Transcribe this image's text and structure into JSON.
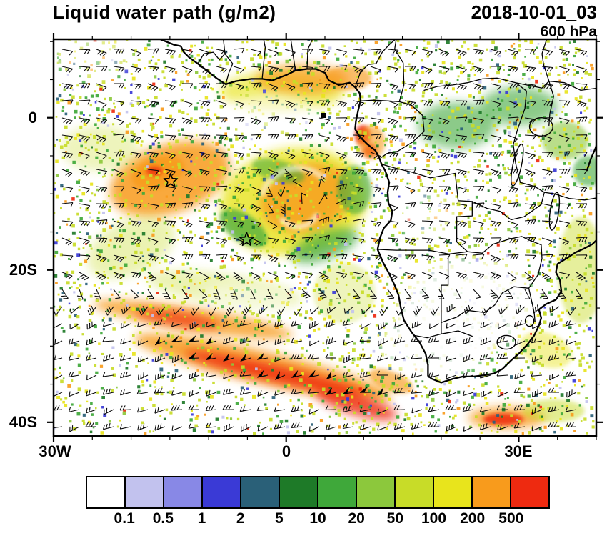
{
  "header": {
    "title": "Liquid water path (g/m2)",
    "datetime": "2018-10-01_03",
    "level": "600 hPa"
  },
  "axes": {
    "x_tick_labels": [
      "30W",
      "0",
      "30E"
    ],
    "y_tick_labels": [
      "0",
      "20S",
      "40S"
    ]
  },
  "colorbar": {
    "labels": [
      "0.1",
      "0.5",
      "1",
      "2",
      "5",
      "10",
      "20",
      "50",
      "100",
      "200",
      "500"
    ],
    "colors": [
      "#ffffff",
      "#c2c2ee",
      "#8888e6",
      "#3a3ad6",
      "#2a6078",
      "#1e7a28",
      "#3fa83a",
      "#8cc83c",
      "#c8dc28",
      "#e8e41c",
      "#f89b1c",
      "#ee2a10"
    ]
  },
  "chart_data": {
    "type": "heatmap",
    "title": "Liquid water path (g/m2)",
    "units": "g/m2",
    "valid_time": "2018-10-01_03",
    "pressure_level": "600 hPa",
    "extent": {
      "lon_min": -30,
      "lon_max": 40,
      "lat_min": -41.8,
      "lat_max": 10.3
    },
    "x_ticks": [
      {
        "label": "30W",
        "lon": -30
      },
      {
        "label": "0",
        "lon": 0
      },
      {
        "label": "30E",
        "lon": 30
      }
    ],
    "y_ticks": [
      {
        "label": "0",
        "lat": 0
      },
      {
        "label": "20S",
        "lat": -20
      },
      {
        "label": "40S",
        "lat": -40
      }
    ],
    "color_levels": [
      0.1,
      0.5,
      1,
      2,
      5,
      10,
      20,
      50,
      100,
      200,
      500
    ],
    "legend_position": "bottom",
    "overlays": [
      "wind barbs",
      "coastlines and country borders",
      "station markers"
    ],
    "markers": [
      {
        "type": "star",
        "lon": -14.9,
        "lat": -8.3
      },
      {
        "type": "star",
        "lon": -5.1,
        "lat": -16.0
      },
      {
        "type": "square",
        "lon": 4.8,
        "lat": 0.3
      }
    ],
    "features": [
      {
        "lon": -15,
        "lat": -8,
        "rlon": 8,
        "rlat": 4.5,
        "rot": -18,
        "value": 220
      },
      {
        "lon": -16.5,
        "lat": -7.2,
        "rlon": 3.5,
        "rlat": 2,
        "rot": -18,
        "value": 420
      },
      {
        "lon": -17,
        "lat": -7,
        "rlon": 1.1,
        "rlat": 0.6,
        "rot": 0,
        "value": 700,
        "opacity": 0.8
      },
      {
        "lon": 1,
        "lat": -11,
        "rlon": 9.5,
        "rlat": 7,
        "rot": -8,
        "value": 150,
        "opacity": 0.8
      },
      {
        "lon": 2.5,
        "lat": -10.5,
        "rlon": 6,
        "rlat": 4.5,
        "rot": -15,
        "value": 260,
        "opacity": 0.8
      },
      {
        "lon": -5.5,
        "lat": -14.5,
        "rlon": 3.5,
        "rlat": 1.8,
        "rot": 35,
        "value": 15,
        "opacity": 0.7
      },
      {
        "lon": 5,
        "lat": -16.8,
        "rlon": 4.5,
        "rlat": 1.8,
        "rot": -20,
        "value": 15,
        "opacity": 0.7
      },
      {
        "lon": 8.8,
        "lat": -9.5,
        "rlon": 2.2,
        "rlat": 3.2,
        "rot": 0,
        "value": 15,
        "opacity": 0.6
      },
      {
        "lon": -1,
        "lat": -7,
        "rlon": 3.5,
        "rlat": 1.4,
        "rot": 15,
        "value": 15,
        "opacity": 0.55
      },
      {
        "lon": -0.5,
        "lat": 3.5,
        "rlon": 8,
        "rlat": 2.6,
        "rot": 0,
        "value": 130,
        "opacity": 0.65
      },
      {
        "lon": 2,
        "lat": 5,
        "rlon": 6,
        "rlat": 2,
        "rot": 0,
        "value": 260,
        "opacity": 0.7
      },
      {
        "lon": 8,
        "lat": 5.2,
        "rlon": 3,
        "rlat": 1.6,
        "rot": 0,
        "value": 260,
        "opacity": 0.65
      },
      {
        "lon": 9.9,
        "lat": -2.3,
        "rlon": 1,
        "rlat": 1.3,
        "rot": 0,
        "value": 700,
        "opacity": 0.9
      },
      {
        "lon": 10.8,
        "lat": -4.3,
        "rlon": 0.9,
        "rlat": 0.9,
        "rot": 0,
        "value": 700,
        "opacity": 0.85
      },
      {
        "lon": 11,
        "lat": -3.2,
        "rlon": 1.8,
        "rlat": 2.2,
        "rot": 0,
        "value": 260,
        "opacity": 0.6
      },
      {
        "lon": 22,
        "lat": -1,
        "rlon": 5,
        "rlat": 3,
        "rot": 0,
        "value": 15,
        "opacity": 0.6
      },
      {
        "lon": 30,
        "lat": 1.5,
        "rlon": 5,
        "rlat": 2.5,
        "rot": 0,
        "value": 15,
        "opacity": 0.6
      },
      {
        "lon": 36,
        "lat": -3,
        "rlon": 3,
        "rlat": 2.5,
        "rot": 0,
        "value": 30,
        "opacity": 0.6
      },
      {
        "lon": 39,
        "lat": -7,
        "rlon": 2,
        "rlat": 2,
        "rot": 0,
        "value": 15,
        "opacity": 0.6
      },
      {
        "lon": 38,
        "lat": -20,
        "rlon": 3,
        "rlat": 7,
        "rot": 0,
        "value": 60,
        "opacity": 0.45
      },
      {
        "lon": -12,
        "lat": -26.5,
        "rlon": 13,
        "rlat": 1.5,
        "rot": 9,
        "value": 260,
        "opacity": 0.8
      },
      {
        "lon": -14,
        "lat": -26.4,
        "rlon": 5.5,
        "rlat": 0.8,
        "rot": 9,
        "value": 700,
        "opacity": 0.75
      },
      {
        "lon": -3,
        "lat": -32.8,
        "rlon": 17,
        "rlat": 2.1,
        "rot": 13,
        "value": 260,
        "opacity": 0.85
      },
      {
        "lon": -1.5,
        "lat": -33.6,
        "rlon": 12,
        "rlat": 1.1,
        "rot": 13,
        "value": 700,
        "opacity": 0.85
      },
      {
        "lon": 9,
        "lat": -37.6,
        "rlon": 5.5,
        "rlat": 1.4,
        "rot": 17,
        "value": 700,
        "opacity": 0.8
      },
      {
        "lon": 13.5,
        "lat": -34.6,
        "rlon": 3,
        "rlat": 1.3,
        "rot": 20,
        "value": 260,
        "opacity": 0.65
      },
      {
        "lon": 28.5,
        "lat": -39.4,
        "rlon": 5,
        "rlat": 1.4,
        "rot": 0,
        "value": 260,
        "opacity": 0.8
      },
      {
        "lon": 28,
        "lat": -39.6,
        "rlon": 2.6,
        "rlat": 0.8,
        "rot": 0,
        "value": 700,
        "opacity": 0.85
      },
      {
        "lon": 34.5,
        "lat": -38.5,
        "rlon": 4,
        "rlat": 1.5,
        "rot": 0,
        "value": 75,
        "opacity": 0.5
      },
      {
        "lon": -8,
        "lat": -22.5,
        "rlon": 10,
        "rlat": 2,
        "rot": 8,
        "value": 75,
        "opacity": 0.35
      },
      {
        "lon": -20,
        "lat": -17,
        "rlon": 6,
        "rlat": 3.5,
        "rot": -25,
        "value": 75,
        "opacity": 0.35
      },
      {
        "lon": 7.5,
        "lat": -23,
        "rlon": 4,
        "rlat": 4,
        "rot": 0,
        "value": 75,
        "opacity": 0.3
      },
      {
        "lon": -24,
        "lat": -4,
        "rlon": 5,
        "rlat": 3,
        "rot": 0,
        "value": 75,
        "opacity": 0.3
      },
      {
        "lon": 33.5,
        "lat": -30.5,
        "rlon": 3.5,
        "rlat": 2.2,
        "rot": 20,
        "value": 150,
        "opacity": 0.45
      }
    ],
    "clear_zones": [
      {
        "lon": 23,
        "lat": -25,
        "rlon": 9,
        "rlat": 6.5,
        "rot": -10,
        "opacity": 0.85
      },
      {
        "lon": 19,
        "lat": -30,
        "rlon": 7,
        "rlat": 4,
        "rot": 0,
        "opacity": 0.8
      },
      {
        "lon": 18,
        "lat": -13,
        "rlon": 4,
        "rlat": 3,
        "rot": 0,
        "opacity": 0.5
      },
      {
        "lon": -2,
        "lat": 0.5,
        "rlon": 6,
        "rlat": 2.5,
        "rot": 0,
        "opacity": 0.55
      },
      {
        "lon": -5,
        "lat": -23.5,
        "rlon": 6,
        "rlat": 1.6,
        "rot": 5,
        "opacity": 0.45
      },
      {
        "lon": -25,
        "lat": 8,
        "rlon": 5,
        "rlat": 3,
        "rot": 0,
        "opacity": 0.45
      }
    ]
  }
}
